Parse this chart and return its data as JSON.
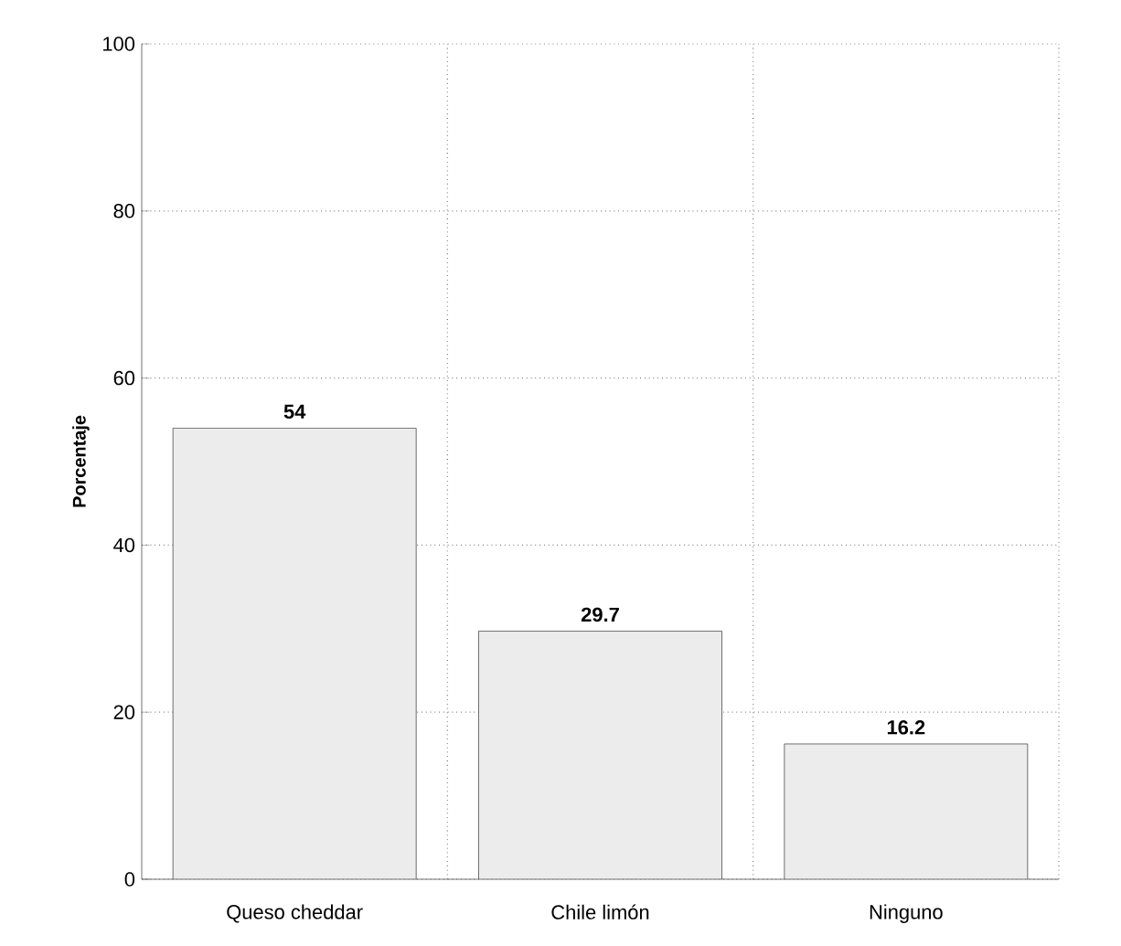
{
  "chart_data": {
    "type": "bar",
    "ylabel": "Porcentaje",
    "categories": [
      "Queso cheddar",
      "Chile limón",
      "Ninguno"
    ],
    "values": [
      54,
      29.7,
      16.2
    ],
    "color": "#ececec",
    "ylim": [
      0,
      100
    ],
    "yticks": [
      0,
      20,
      40,
      60,
      80,
      100
    ],
    "grid": true,
    "data_labels": true
  }
}
